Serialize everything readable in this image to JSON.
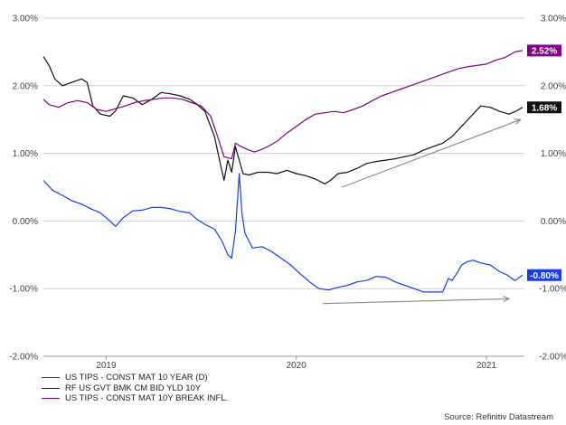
{
  "chart_data": {
    "type": "line",
    "title": "",
    "x_label": "",
    "y_label": "",
    "x_range": [
      2018.67,
      2021.2
    ],
    "y_range": [
      -2.0,
      3.0
    ],
    "y_ticks": [
      "3.00%",
      "2.00%",
      "1.00%",
      "0.00%",
      "-1.00%",
      "-2.00%"
    ],
    "y_tick_values": [
      3.0,
      2.0,
      1.0,
      0.0,
      -1.0,
      -2.0
    ],
    "right_y_ticks": [
      "3.00%",
      "2.00%",
      "1.00%",
      "0.00%",
      "-1.00%",
      "-2.00%"
    ],
    "x_ticks": [
      {
        "label": "2019",
        "x": 2019.0
      },
      {
        "label": "2020",
        "x": 2020.0
      },
      {
        "label": "2021",
        "x": 2021.0
      }
    ],
    "grid": "horizontal",
    "legend_placement": "bottom-left",
    "series": [
      {
        "name": "US TIPS - CONST MAT 10 YEAR (D)",
        "color": "#1a3fe0",
        "end_label": "-0.80%",
        "points": [
          [
            2018.67,
            0.6
          ],
          [
            2018.72,
            0.45
          ],
          [
            2018.77,
            0.38
          ],
          [
            2018.82,
            0.3
          ],
          [
            2018.87,
            0.25
          ],
          [
            2018.92,
            0.18
          ],
          [
            2018.97,
            0.12
          ],
          [
            2019.02,
            0.0
          ],
          [
            2019.05,
            -0.08
          ],
          [
            2019.09,
            0.05
          ],
          [
            2019.14,
            0.15
          ],
          [
            2019.19,
            0.16
          ],
          [
            2019.24,
            0.2
          ],
          [
            2019.29,
            0.2
          ],
          [
            2019.34,
            0.18
          ],
          [
            2019.39,
            0.14
          ],
          [
            2019.44,
            0.12
          ],
          [
            2019.48,
            0.02
          ],
          [
            2019.52,
            -0.05
          ],
          [
            2019.57,
            -0.12
          ],
          [
            2019.61,
            -0.3
          ],
          [
            2019.64,
            -0.5
          ],
          [
            2019.66,
            -0.55
          ],
          [
            2019.68,
            -0.15
          ],
          [
            2019.7,
            0.7
          ],
          [
            2019.715,
            0.1
          ],
          [
            2019.73,
            -0.18
          ],
          [
            2019.77,
            -0.4
          ],
          [
            2019.82,
            -0.38
          ],
          [
            2019.87,
            -0.45
          ],
          [
            2019.92,
            -0.55
          ],
          [
            2019.97,
            -0.65
          ],
          [
            2020.02,
            -0.78
          ],
          [
            2020.07,
            -0.9
          ],
          [
            2020.12,
            -1.0
          ],
          [
            2020.17,
            -1.02
          ],
          [
            2020.22,
            -0.98
          ],
          [
            2020.27,
            -0.95
          ],
          [
            2020.32,
            -0.9
          ],
          [
            2020.37,
            -0.88
          ],
          [
            2020.42,
            -0.82
          ],
          [
            2020.47,
            -0.83
          ],
          [
            2020.52,
            -0.9
          ],
          [
            2020.57,
            -0.95
          ],
          [
            2020.62,
            -1.0
          ],
          [
            2020.67,
            -1.05
          ],
          [
            2020.72,
            -1.05
          ],
          [
            2020.77,
            -1.05
          ],
          [
            2020.8,
            -0.85
          ],
          [
            2020.82,
            -0.88
          ],
          [
            2020.85,
            -0.75
          ],
          [
            2020.87,
            -0.65
          ],
          [
            2020.9,
            -0.6
          ],
          [
            2020.93,
            -0.58
          ],
          [
            2020.97,
            -0.62
          ],
          [
            2021.02,
            -0.65
          ],
          [
            2021.07,
            -0.75
          ],
          [
            2021.11,
            -0.8
          ],
          [
            2021.15,
            -0.88
          ],
          [
            2021.19,
            -0.8
          ]
        ]
      },
      {
        "name": "RF US GVT BMK CM BID YLD 10Y",
        "color": "#111111",
        "end_label": "1.68%",
        "points": [
          [
            2018.67,
            2.43
          ],
          [
            2018.7,
            2.3
          ],
          [
            2018.73,
            2.1
          ],
          [
            2018.77,
            2.0
          ],
          [
            2018.82,
            2.05
          ],
          [
            2018.87,
            2.1
          ],
          [
            2018.9,
            2.05
          ],
          [
            2018.93,
            1.7
          ],
          [
            2018.97,
            1.58
          ],
          [
            2019.02,
            1.55
          ],
          [
            2019.05,
            1.63
          ],
          [
            2019.09,
            1.85
          ],
          [
            2019.14,
            1.82
          ],
          [
            2019.19,
            1.72
          ],
          [
            2019.24,
            1.8
          ],
          [
            2019.29,
            1.9
          ],
          [
            2019.34,
            1.88
          ],
          [
            2019.39,
            1.85
          ],
          [
            2019.44,
            1.8
          ],
          [
            2019.48,
            1.72
          ],
          [
            2019.52,
            1.62
          ],
          [
            2019.57,
            1.25
          ],
          [
            2019.6,
            0.85
          ],
          [
            2019.62,
            0.6
          ],
          [
            2019.64,
            0.9
          ],
          [
            2019.66,
            0.72
          ],
          [
            2019.68,
            1.1
          ],
          [
            2019.7,
            0.9
          ],
          [
            2019.72,
            0.7
          ],
          [
            2019.75,
            0.68
          ],
          [
            2019.8,
            0.72
          ],
          [
            2019.85,
            0.72
          ],
          [
            2019.9,
            0.7
          ],
          [
            2019.95,
            0.75
          ],
          [
            2020.0,
            0.7
          ],
          [
            2020.05,
            0.67
          ],
          [
            2020.1,
            0.62
          ],
          [
            2020.15,
            0.55
          ],
          [
            2020.18,
            0.6
          ],
          [
            2020.22,
            0.7
          ],
          [
            2020.27,
            0.72
          ],
          [
            2020.32,
            0.78
          ],
          [
            2020.37,
            0.85
          ],
          [
            2020.42,
            0.88
          ],
          [
            2020.47,
            0.9
          ],
          [
            2020.52,
            0.92
          ],
          [
            2020.57,
            0.95
          ],
          [
            2020.62,
            0.98
          ],
          [
            2020.67,
            1.05
          ],
          [
            2020.72,
            1.1
          ],
          [
            2020.77,
            1.15
          ],
          [
            2020.82,
            1.25
          ],
          [
            2020.87,
            1.4
          ],
          [
            2020.92,
            1.55
          ],
          [
            2020.97,
            1.7
          ],
          [
            2021.02,
            1.68
          ],
          [
            2021.07,
            1.62
          ],
          [
            2021.12,
            1.58
          ],
          [
            2021.16,
            1.63
          ],
          [
            2021.19,
            1.68
          ]
        ]
      },
      {
        "name": "US TIPS - CONST MAT 10Y BREAK INFL.",
        "color": "#800080",
        "end_label": "2.52%",
        "points": [
          [
            2018.67,
            1.8
          ],
          [
            2018.7,
            1.72
          ],
          [
            2018.75,
            1.68
          ],
          [
            2018.8,
            1.75
          ],
          [
            2018.85,
            1.78
          ],
          [
            2018.9,
            1.75
          ],
          [
            2018.95,
            1.65
          ],
          [
            2019.0,
            1.62
          ],
          [
            2019.05,
            1.66
          ],
          [
            2019.1,
            1.7
          ],
          [
            2019.15,
            1.75
          ],
          [
            2019.2,
            1.78
          ],
          [
            2019.25,
            1.8
          ],
          [
            2019.3,
            1.82
          ],
          [
            2019.35,
            1.82
          ],
          [
            2019.4,
            1.8
          ],
          [
            2019.45,
            1.75
          ],
          [
            2019.5,
            1.7
          ],
          [
            2019.55,
            1.55
          ],
          [
            2019.58,
            1.3
          ],
          [
            2019.62,
            0.95
          ],
          [
            2019.66,
            0.92
          ],
          [
            2019.68,
            1.15
          ],
          [
            2019.71,
            1.1
          ],
          [
            2019.75,
            1.05
          ],
          [
            2019.78,
            1.02
          ],
          [
            2019.81,
            1.05
          ],
          [
            2019.85,
            1.1
          ],
          [
            2019.9,
            1.18
          ],
          [
            2019.95,
            1.3
          ],
          [
            2020.0,
            1.4
          ],
          [
            2020.05,
            1.5
          ],
          [
            2020.1,
            1.58
          ],
          [
            2020.15,
            1.6
          ],
          [
            2020.2,
            1.62
          ],
          [
            2020.25,
            1.6
          ],
          [
            2020.3,
            1.65
          ],
          [
            2020.35,
            1.7
          ],
          [
            2020.4,
            1.78
          ],
          [
            2020.45,
            1.85
          ],
          [
            2020.5,
            1.9
          ],
          [
            2020.55,
            1.95
          ],
          [
            2020.6,
            2.0
          ],
          [
            2020.65,
            2.05
          ],
          [
            2020.7,
            2.1
          ],
          [
            2020.75,
            2.15
          ],
          [
            2020.8,
            2.2
          ],
          [
            2020.85,
            2.25
          ],
          [
            2020.9,
            2.28
          ],
          [
            2020.95,
            2.3
          ],
          [
            2021.0,
            2.32
          ],
          [
            2021.05,
            2.38
          ],
          [
            2021.1,
            2.42
          ],
          [
            2021.15,
            2.5
          ],
          [
            2021.19,
            2.52
          ]
        ]
      }
    ],
    "annotations": [
      {
        "type": "arrow",
        "color": "#8a8a8a",
        "from": [
          2020.24,
          0.5
        ],
        "to": [
          2021.18,
          1.5
        ]
      },
      {
        "type": "arrow",
        "color": "#8a8a8a",
        "from": [
          2020.14,
          -1.22
        ],
        "to": [
          2021.12,
          -1.15
        ]
      }
    ]
  },
  "source": "Source: Refinitiv Datastream"
}
